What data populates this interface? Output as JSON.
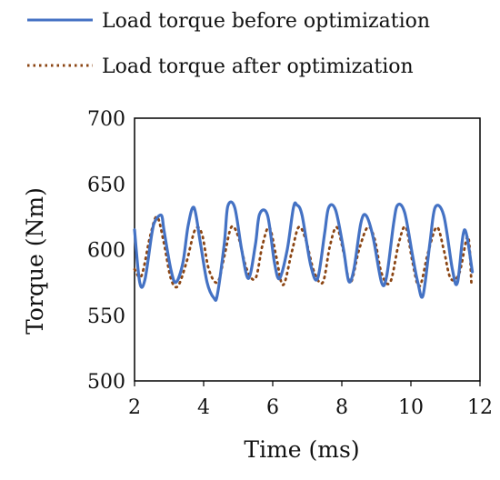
{
  "chart_data": {
    "type": "line",
    "xlabel": "Time (ms)",
    "ylabel": "Torque (Nm)",
    "xlim": [
      2,
      12
    ],
    "ylim": [
      500,
      700
    ],
    "xticks": [
      "2",
      "4",
      "6",
      "8",
      "10",
      "12"
    ],
    "yticks": [
      "500",
      "550",
      "600",
      "650",
      "700"
    ],
    "grid": false,
    "legend_position": "top",
    "series": [
      {
        "name": "Load torque before optimization",
        "color": "#4472C4",
        "style": "solid",
        "x": [
          2.0,
          2.15,
          2.3,
          2.5,
          2.6,
          2.78,
          2.85,
          3.05,
          3.2,
          3.4,
          3.55,
          3.72,
          3.9,
          4.1,
          4.3,
          4.4,
          4.6,
          4.7,
          4.9,
          5.1,
          5.3,
          5.5,
          5.62,
          5.85,
          6.05,
          6.2,
          6.42,
          6.6,
          6.7,
          6.85,
          7.1,
          7.3,
          7.5,
          7.62,
          7.82,
          8.05,
          8.2,
          8.35,
          8.55,
          8.7,
          8.9,
          9.15,
          9.3,
          9.5,
          9.62,
          9.82,
          10.05,
          10.2,
          10.35,
          10.55,
          10.7,
          10.95,
          11.2,
          11.35,
          11.55,
          11.78
        ],
        "y": [
          615,
          575,
          577,
          612,
          622,
          626,
          615,
          585,
          575,
          590,
          618,
          632,
          606,
          575,
          563,
          566,
          605,
          633,
          632,
          600,
          578,
          604,
          627,
          626,
          590,
          578,
          600,
          632,
          634,
          626,
          588,
          578,
          612,
          632,
          630,
          600,
          576,
          585,
          620,
          626,
          610,
          575,
          580,
          620,
          634,
          628,
          595,
          575,
          565,
          605,
          632,
          626,
          585,
          575,
          615,
          583
        ]
      },
      {
        "name": "Load torque after optimization",
        "color": "#8B4513",
        "style": "dotted",
        "x": [
          2.0,
          2.2,
          2.45,
          2.65,
          2.85,
          3.05,
          3.25,
          3.5,
          3.75,
          3.95,
          4.15,
          4.4,
          4.6,
          4.8,
          5.0,
          5.25,
          5.5,
          5.7,
          5.9,
          6.1,
          6.3,
          6.55,
          6.75,
          6.95,
          7.2,
          7.45,
          7.65,
          7.85,
          8.05,
          8.25,
          8.5,
          8.75,
          8.95,
          9.15,
          9.4,
          9.65,
          9.85,
          10.05,
          10.25,
          10.5,
          10.75,
          10.95,
          11.15,
          11.4,
          11.65,
          11.75
        ],
        "y": [
          585,
          580,
          610,
          625,
          605,
          578,
          572,
          590,
          615,
          612,
          585,
          575,
          595,
          617,
          610,
          585,
          578,
          603,
          617,
          595,
          573,
          598,
          617,
          608,
          583,
          575,
          602,
          617,
          598,
          575,
          600,
          617,
          608,
          582,
          575,
          605,
          617,
          590,
          572,
          598,
          617,
          600,
          578,
          582,
          610,
          575
        ]
      }
    ]
  }
}
